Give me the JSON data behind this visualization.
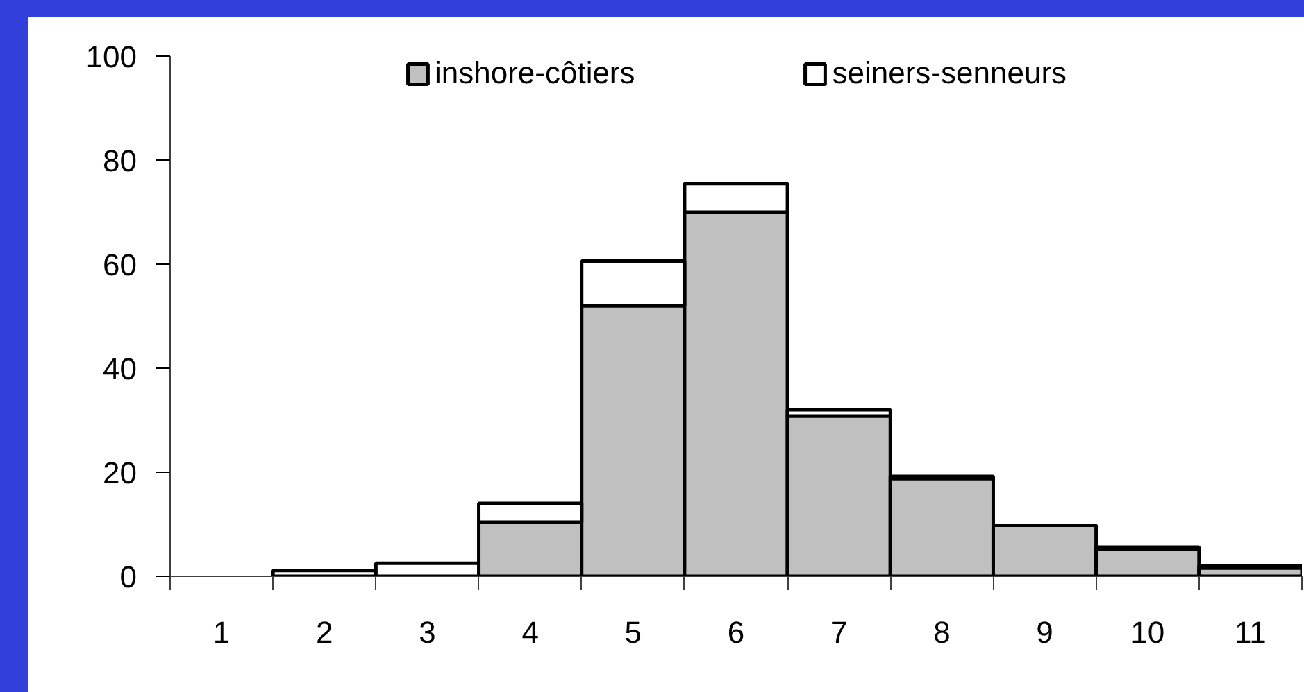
{
  "chart_data": {
    "type": "bar",
    "stacked": true,
    "categories": [
      "1",
      "2",
      "3",
      "4",
      "5",
      "6",
      "7",
      "8",
      "9",
      "10",
      "11"
    ],
    "series": [
      {
        "name": "inshore-côtiers",
        "color": "#c0c0c0",
        "values": [
          0,
          0,
          0,
          10.4,
          52,
          70,
          30.8,
          18.8,
          9.8,
          5.2,
          1.6
        ]
      },
      {
        "name": "seiners-senneurs",
        "color": "#ffffff",
        "values": [
          0,
          1.1,
          2.5,
          3.6,
          8.6,
          5.5,
          1.2,
          0.4,
          0,
          0.4,
          0.4
        ]
      }
    ],
    "ylim": [
      0,
      100
    ],
    "yticks": [
      0,
      20,
      40,
      60,
      80,
      100
    ],
    "grid": false,
    "legend": "top"
  }
}
